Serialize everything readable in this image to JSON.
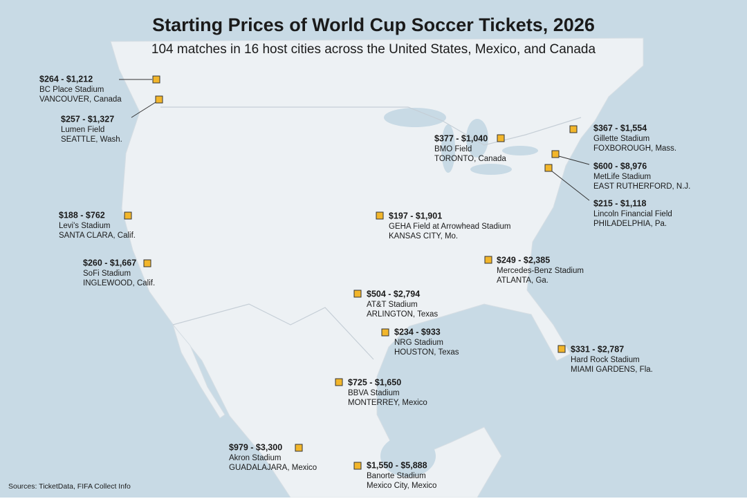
{
  "header": {
    "title": "Starting Prices of World Cup Soccer Tickets, 2026",
    "subtitle": "104 matches in 16 host cities across the United States, Mexico, and Canada"
  },
  "stadiums": [
    {
      "price": "$264 - $1,212",
      "stadium": "BC Place Stadium",
      "city": "VANCOUVER, Canada"
    },
    {
      "price": "$257 - $1,327",
      "stadium": "Lumen Field",
      "city": "SEATTLE, Wash."
    },
    {
      "price": "$188 - $762",
      "stadium": "Levi's Stadium",
      "city": "SANTA CLARA, Calif."
    },
    {
      "price": "$260 - $1,667",
      "stadium": "SoFi Stadium",
      "city": "INGLEWOOD, Calif."
    },
    {
      "price": "$377 - $1,040",
      "stadium": "BMO Field",
      "city": "TORONTO, Canada"
    },
    {
      "price": "$367 - $1,554",
      "stadium": "Gillette Stadium",
      "city": "FOXBOROUGH, Mass."
    },
    {
      "price": "$600 - $8,976",
      "stadium": "MetLife Stadium",
      "city": "EAST RUTHERFORD, N.J."
    },
    {
      "price": "$215 - $1,118",
      "stadium": "Lincoln Financial Field",
      "city": "PHILADELPHIA, Pa."
    },
    {
      "price": "$197 - $1,901",
      "stadium": "GEHA Field at Arrowhead Stadium",
      "city": "KANSAS CITY, Mo."
    },
    {
      "price": "$249 - $2,385",
      "stadium": "Mercedes-Benz Stadium",
      "city": "ATLANTA, Ga."
    },
    {
      "price": "$504 - $2,794",
      "stadium": "AT&T Stadium",
      "city": "ARLINGTON, Texas"
    },
    {
      "price": "$234 - $933",
      "stadium": "NRG Stadium",
      "city": "HOUSTON, Texas"
    },
    {
      "price": "$331 - $2,787",
      "stadium": "Hard Rock Stadium",
      "city": "MIAMI GARDENS, Fla."
    },
    {
      "price": "$725 - $1,650",
      "stadium": "BBVA Stadium",
      "city": "MONTERREY, Mexico"
    },
    {
      "price": "$979 - $3,300",
      "stadium": "Akron Stadium",
      "city": "GUADALAJARA, Mexico"
    },
    {
      "price": "$1,550 - $5,888",
      "stadium": "Banorte Stadium",
      "city": "Mexico City, Mexico"
    }
  ],
  "footer": {
    "sources": "Sources: TicketData, FIFA Collect Info"
  }
}
